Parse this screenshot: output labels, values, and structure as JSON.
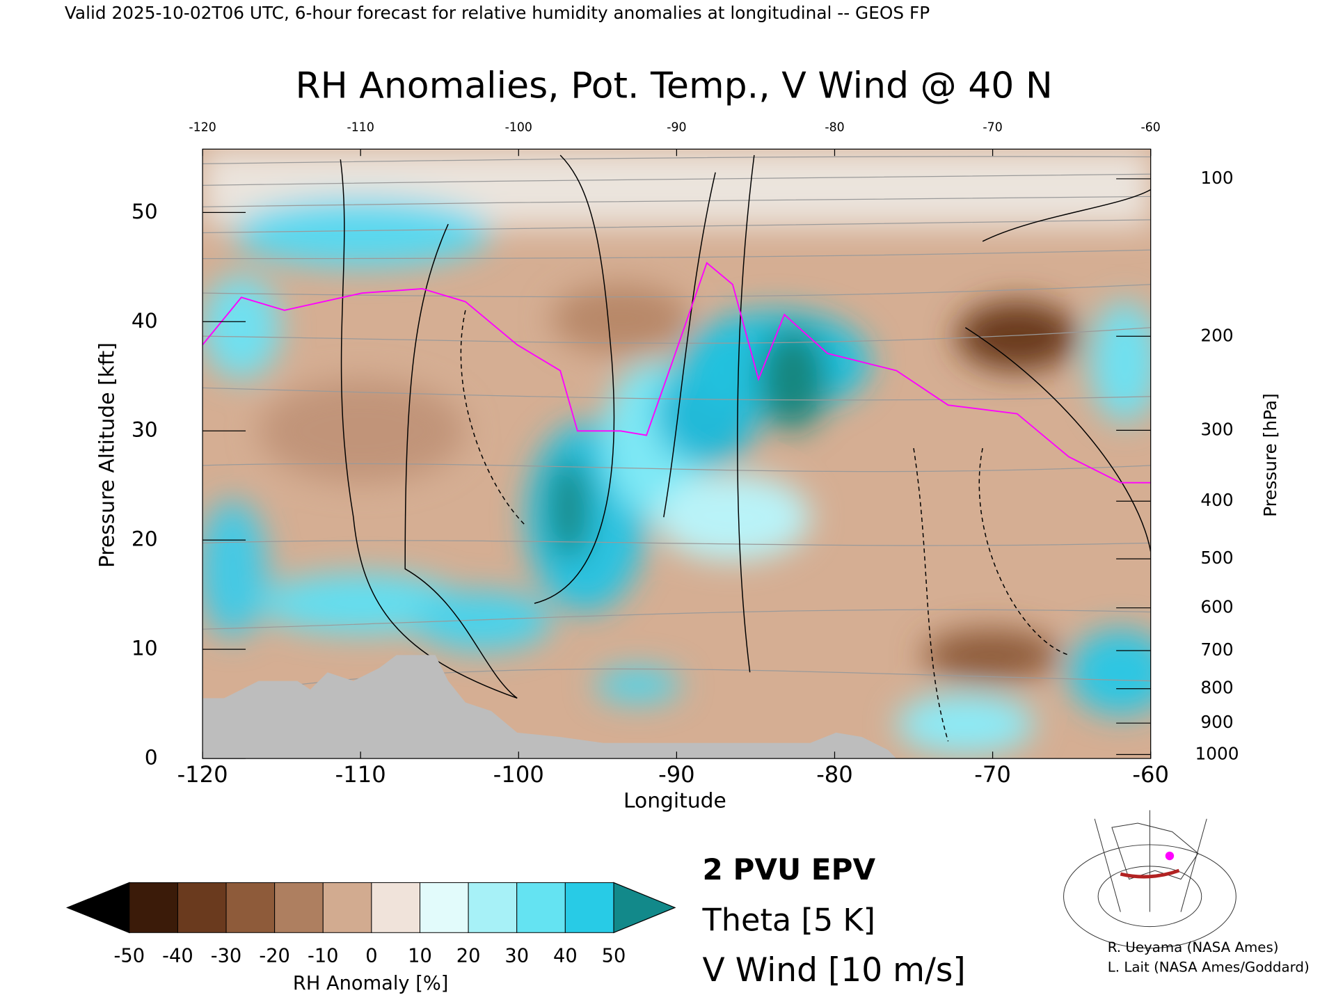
{
  "chart_data": {
    "type": "contour",
    "subtitle": "Valid 2025-10-02T06 UTC, 6-hour forecast for relative humidity anomalies at longitudinal -- GEOS FP",
    "title": "RH Anomalies, Pot. Temp., V Wind @ 40 N",
    "x_label": "Longitude",
    "y_label": "Pressure Altitude [kft]",
    "y2_label": "Pressure [hPa]",
    "xlim": [
      -120,
      -60
    ],
    "xticks": [
      -120,
      -110,
      -100,
      -90,
      -80,
      -70,
      -60
    ],
    "ylim": [
      0,
      55.8
    ],
    "yticks": [
      0,
      10,
      20,
      30,
      40,
      50
    ],
    "y2scale": "pressure-altitude",
    "y2ticks": [
      100,
      200,
      300,
      400,
      500,
      600,
      700,
      800,
      900,
      1000
    ],
    "colorbar": {
      "label": "RH Anomaly [%]",
      "ticks": [
        -50,
        -40,
        -30,
        -20,
        -10,
        0,
        10,
        20,
        30,
        40,
        50
      ],
      "colors": [
        "#3b1b09",
        "#6a3a1e",
        "#8e5b3a",
        "#ae7f60",
        "#d2ab90",
        "#f0e3da",
        "#e2fbfb",
        "#a7f1f7",
        "#64e3f2",
        "#28cbe6",
        "#1096b6"
      ],
      "under_color": "#000000",
      "over_color": "#12898a"
    },
    "legend": [
      {
        "name": "2 PVU EPV",
        "color": "#ff00ff"
      },
      {
        "name": "Theta [5 K]",
        "color": "#b4b4b4"
      },
      {
        "name": "V Wind [10 m/s]",
        "color": "#000000"
      }
    ],
    "credits": [
      "R. Ueyama (NASA Ames)",
      "L. Lait (NASA Ames/Goddard)"
    ]
  }
}
